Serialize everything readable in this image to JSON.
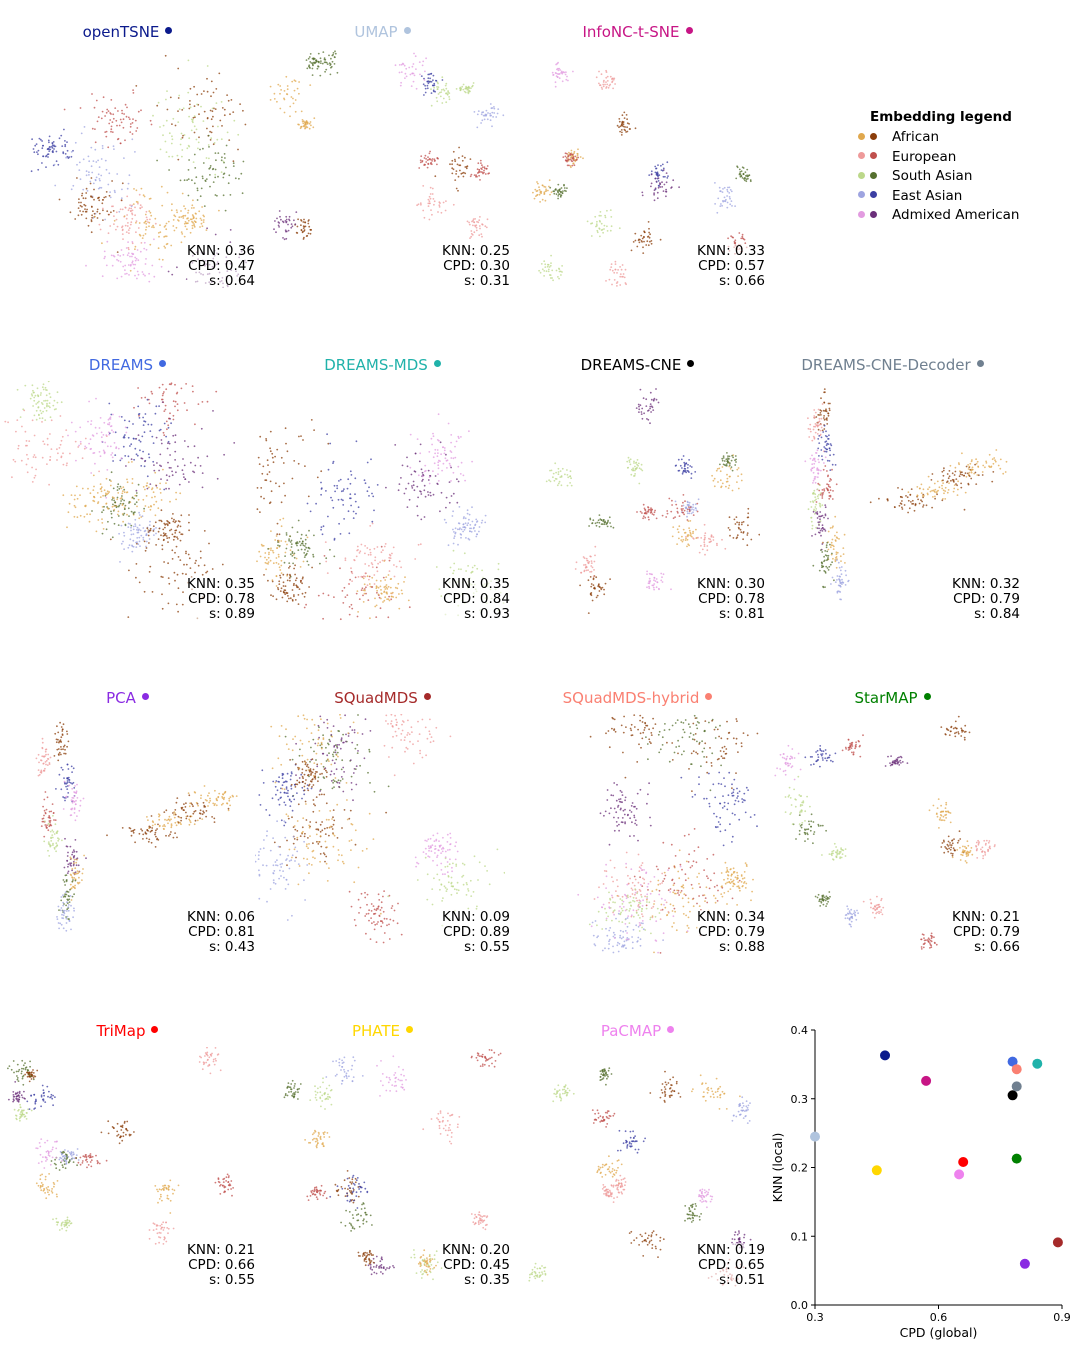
{
  "legend": {
    "title": "Embedding legend",
    "items": [
      {
        "label": "African",
        "dark": "#8b3d0a",
        "light": "#e0a84e"
      },
      {
        "label": "European",
        "dark": "#c0504d",
        "light": "#ee9a9a"
      },
      {
        "label": "South Asian",
        "dark": "#55702f",
        "light": "#bcd88a"
      },
      {
        "label": "East Asian",
        "dark": "#3c3fa3",
        "light": "#9ea4e0"
      },
      {
        "label": "Admixed American",
        "dark": "#6b2f7a",
        "light": "#e29be0"
      }
    ]
  },
  "panels": [
    {
      "title": "openTSNE",
      "color": "#0b1a8c",
      "knn": "KNN: 0.36",
      "cpd": "CPD: 0.47",
      "s": "s: 0.64",
      "style": "tsne"
    },
    {
      "title": "UMAP",
      "color": "#b0c4de",
      "knn": "KNN: 0.25",
      "cpd": "CPD: 0.30",
      "s": "s: 0.31",
      "style": "umap"
    },
    {
      "title": "InfoNC-t-SNE",
      "color": "#c71585",
      "knn": "KNN: 0.33",
      "cpd": "CPD: 0.57",
      "s": "s: 0.66",
      "style": "umap"
    },
    {
      "title": "DREAMS",
      "color": "#4169e1",
      "knn": "KNN: 0.35",
      "cpd": "CPD: 0.78",
      "s": "s: 0.89",
      "style": "tsne"
    },
    {
      "title": "DREAMS-MDS",
      "color": "#20b2aa",
      "knn": "KNN: 0.35",
      "cpd": "CPD: 0.84",
      "s": "s: 0.93",
      "style": "tsne"
    },
    {
      "title": "DREAMS-CNE",
      "color": "#000000",
      "knn": "KNN: 0.30",
      "cpd": "CPD: 0.78",
      "s": "s: 0.81",
      "style": "umap"
    },
    {
      "title": "DREAMS-CNE-Decoder",
      "color": "#708090",
      "knn": "KNN: 0.32",
      "cpd": "CPD: 0.79",
      "s": "s: 0.84",
      "style": "line"
    },
    {
      "title": "PCA",
      "color": "#8a2be2",
      "knn": "KNN: 0.06",
      "cpd": "CPD: 0.81",
      "s": "s: 0.43",
      "style": "line"
    },
    {
      "title": "SQuadMDS",
      "color": "#a52a2a",
      "knn": "KNN: 0.09",
      "cpd": "CPD: 0.89",
      "s": "s: 0.55",
      "style": "tsne"
    },
    {
      "title": "SQuadMDS-hybrid",
      "color": "#fa8072",
      "knn": "KNN: 0.34",
      "cpd": "CPD: 0.79",
      "s": "s: 0.88",
      "style": "tsne"
    },
    {
      "title": "StarMAP",
      "color": "#008000",
      "knn": "KNN: 0.21",
      "cpd": "CPD: 0.79",
      "s": "s: 0.66",
      "style": "umap"
    },
    {
      "title": "TriMap",
      "color": "#ff0000",
      "knn": "KNN: 0.21",
      "cpd": "CPD: 0.66",
      "s": "s: 0.55",
      "style": "umap"
    },
    {
      "title": "PHATE",
      "color": "#ffd700",
      "knn": "KNN: 0.20",
      "cpd": "CPD: 0.45",
      "s": "s: 0.35",
      "style": "umap"
    },
    {
      "title": "PaCMAP",
      "color": "#ee82ee",
      "knn": "KNN: 0.19",
      "cpd": "CPD: 0.65",
      "s": "s: 0.51",
      "style": "umap"
    }
  ],
  "chart_data": {
    "type": "scatter",
    "title": "",
    "xlabel": "CPD (global)",
    "ylabel": "KNN (local)",
    "xlim": [
      0.3,
      0.9
    ],
    "ylim": [
      0.0,
      0.4
    ],
    "xticks": [
      "0.3",
      "0.6",
      "0.9"
    ],
    "yticks": [
      "0.0",
      "0.1",
      "0.2",
      "0.3",
      "0.4"
    ],
    "points": [
      {
        "name": "openTSNE",
        "x": 0.47,
        "y": 0.363,
        "color": "#0b1a8c"
      },
      {
        "name": "UMAP",
        "x": 0.3,
        "y": 0.245,
        "color": "#b0c4de"
      },
      {
        "name": "InfoNC-t-SNE",
        "x": 0.57,
        "y": 0.326,
        "color": "#c71585"
      },
      {
        "name": "DREAMS",
        "x": 0.78,
        "y": 0.354,
        "color": "#4169e1"
      },
      {
        "name": "DREAMS-MDS",
        "x": 0.84,
        "y": 0.351,
        "color": "#20b2aa"
      },
      {
        "name": "DREAMS-CNE",
        "x": 0.78,
        "y": 0.305,
        "color": "#000000"
      },
      {
        "name": "DREAMS-CNE-Decoder",
        "x": 0.79,
        "y": 0.318,
        "color": "#708090"
      },
      {
        "name": "PCA",
        "x": 0.81,
        "y": 0.06,
        "color": "#8a2be2"
      },
      {
        "name": "SQuadMDS",
        "x": 0.89,
        "y": 0.091,
        "color": "#a52a2a"
      },
      {
        "name": "SQuadMDS-hybrid",
        "x": 0.79,
        "y": 0.343,
        "color": "#fa8072"
      },
      {
        "name": "StarMAP",
        "x": 0.79,
        "y": 0.213,
        "color": "#008000"
      },
      {
        "name": "TriMap",
        "x": 0.66,
        "y": 0.208,
        "color": "#ff0000"
      },
      {
        "name": "PHATE",
        "x": 0.45,
        "y": 0.196,
        "color": "#ffd700"
      },
      {
        "name": "PaCMAP",
        "x": 0.65,
        "y": 0.19,
        "color": "#ee82ee"
      }
    ]
  }
}
